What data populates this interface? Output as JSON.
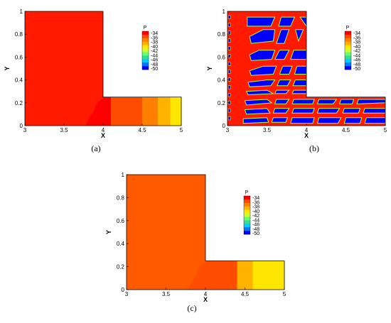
{
  "chart_data": [
    {
      "type": "heatmap",
      "caption": "(a)",
      "xlabel": "X",
      "ylabel": "Y",
      "xlim": [
        3,
        5
      ],
      "ylim": [
        0,
        1
      ],
      "x_ticks": [
        "3",
        "3.5",
        "4",
        "4.5",
        "5"
      ],
      "y_ticks": [
        "0",
        "0.2",
        "0.4",
        "0.6",
        "0.8",
        "1"
      ],
      "field_description": "uniform pressure in vertical channel; horizontal outlet bands decreasing from x=4 to x=5",
      "bands": [
        {
          "x_from": 4.0,
          "x_to": 4.1,
          "value": -34
        },
        {
          "x_from": 4.1,
          "x_to": 4.25,
          "value": -35
        },
        {
          "x_from": 4.25,
          "x_to": 4.5,
          "value": -36
        },
        {
          "x_from": 4.5,
          "x_to": 4.7,
          "value": -37
        },
        {
          "x_from": 4.7,
          "x_to": 4.86,
          "value": -38
        },
        {
          "x_from": 4.86,
          "x_to": 5.0,
          "value": -40
        }
      ],
      "legend": {
        "title": "P",
        "levels": [
          "-34",
          "-36",
          "-38",
          "-40",
          "-42",
          "-44",
          "-46",
          "-48",
          "-50"
        ]
      }
    },
    {
      "type": "heatmap",
      "caption": "(b)",
      "xlabel": "X",
      "ylabel": "Y",
      "xlim": [
        3,
        5
      ],
      "ylim": [
        0,
        1
      ],
      "x_ticks": [
        "3",
        "3.5",
        "4",
        "4.5",
        "5"
      ],
      "y_ticks": [
        "0",
        "0.2",
        "0.4",
        "0.6",
        "0.8",
        "1"
      ],
      "field_description": "alternating blue (-50) blocks separated by red (-34) diagonal bands",
      "legend": {
        "title": "P",
        "levels": [
          "-34",
          "-36",
          "-38",
          "-40",
          "-42",
          "-44",
          "-46",
          "-48",
          "-50"
        ]
      }
    },
    {
      "type": "heatmap",
      "caption": "(c)",
      "xlabel": "X",
      "ylabel": "Y",
      "xlim": [
        3,
        5
      ],
      "ylim": [
        0,
        1
      ],
      "x_ticks": [
        "3",
        "3.5",
        "4",
        "4.5",
        "5"
      ],
      "y_ticks": [
        "0",
        "0.2",
        "0.4",
        "0.6",
        "0.8",
        "1"
      ],
      "field_description": "uniform pressure in vertical channel; horizontal outlet bands decreasing from x=4 to x=5",
      "bands": [
        {
          "x_from": 4.0,
          "x_to": 4.18,
          "value": -35
        },
        {
          "x_from": 4.18,
          "x_to": 4.4,
          "value": -36
        },
        {
          "x_from": 4.4,
          "x_to": 4.6,
          "value": -38
        },
        {
          "x_from": 4.6,
          "x_to": 5.0,
          "value": -40
        }
      ],
      "legend": {
        "title": "P",
        "levels": [
          "-34",
          "-36",
          "-38",
          "-40",
          "-42",
          "-44",
          "-46",
          "-48",
          "-50"
        ]
      }
    }
  ],
  "colors": {
    "scale": [
      "#ff0000",
      "#ff4d00",
      "#ff8000",
      "#ffb300",
      "#ffe600",
      "#ccff33",
      "#66ff66",
      "#33dd99",
      "#00ccff",
      "#0077ff",
      "#0000ff"
    ],
    "panel_a_fill": "#ff1a00",
    "panel_c_fill": "#ff5a00",
    "panel_b_red": "#ff1a00",
    "panel_b_blue": "#0000ff",
    "panel_b_edge": "#aaff55"
  }
}
